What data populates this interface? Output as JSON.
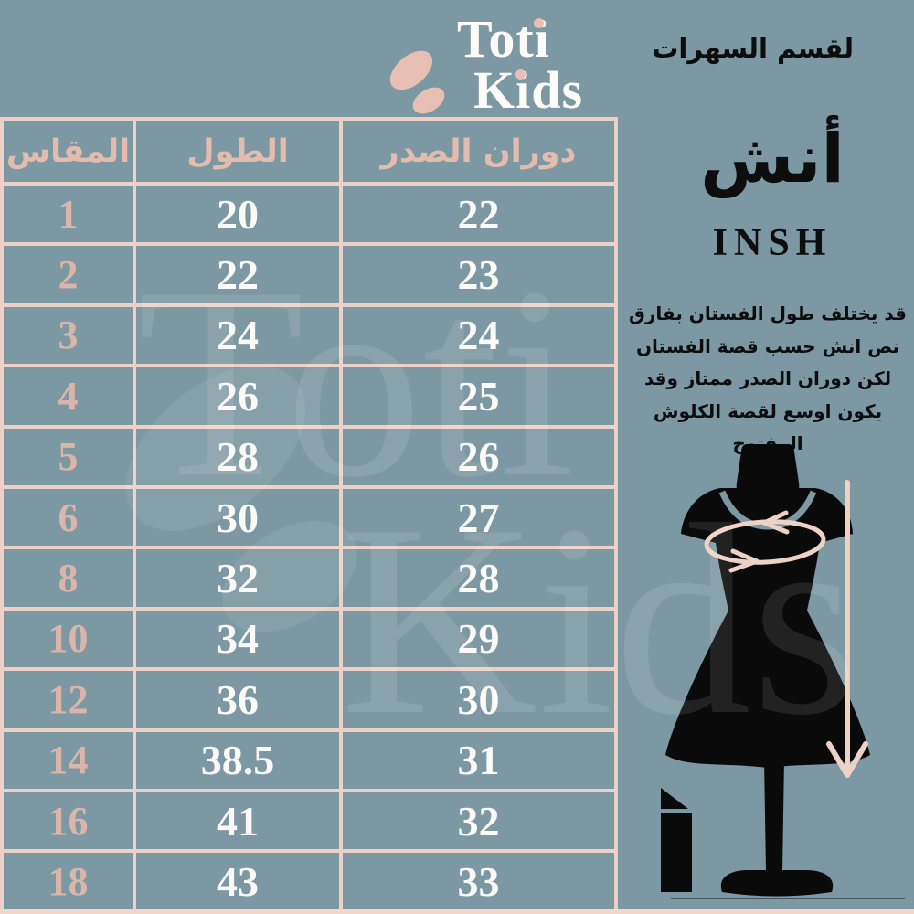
{
  "colors": {
    "background": "#7c98a2",
    "table_border_pink": "#eed1c6",
    "header_text_pink": "#e4bcae",
    "size_text_pink": "#dcb5aa",
    "value_text_white": "#fbfaf6",
    "ink_black": "#0d0d0d",
    "measure_arrow_pink": "#efd2c6"
  },
  "logo": {
    "line1": "Toti",
    "line2": "Kids"
  },
  "header": {
    "section_label": "لقسم السهرات"
  },
  "table": {
    "headers": {
      "size": "المقاس",
      "length": "الطول",
      "chest": "دوران الصدر"
    },
    "rows": [
      {
        "size": "1",
        "length": "20",
        "chest": "22"
      },
      {
        "size": "2",
        "length": "22",
        "chest": "23"
      },
      {
        "size": "3",
        "length": "24",
        "chest": "24"
      },
      {
        "size": "4",
        "length": "26",
        "chest": "25"
      },
      {
        "size": "5",
        "length": "28",
        "chest": "26"
      },
      {
        "size": "6",
        "length": "30",
        "chest": "27"
      },
      {
        "size": "8",
        "length": "32",
        "chest": "28"
      },
      {
        "size": "10",
        "length": "34",
        "chest": "29"
      },
      {
        "size": "12",
        "length": "36",
        "chest": "30"
      },
      {
        "size": "14",
        "length": "38.5",
        "chest": "31"
      },
      {
        "size": "16",
        "length": "41",
        "chest": "32"
      },
      {
        "size": "18",
        "length": "43",
        "chest": "33"
      }
    ]
  },
  "side": {
    "unit_ar": "أنش",
    "unit_en": "INSH",
    "note": "قد يختلف طول الفستان بفارق نص انش حسب قصة الفستان لكن دوران الصدر ممتاز وقد يكون اوسع لقصة الكلوش المفتوح"
  },
  "watermark": {
    "line1": "Toti",
    "line2": "Kids"
  }
}
